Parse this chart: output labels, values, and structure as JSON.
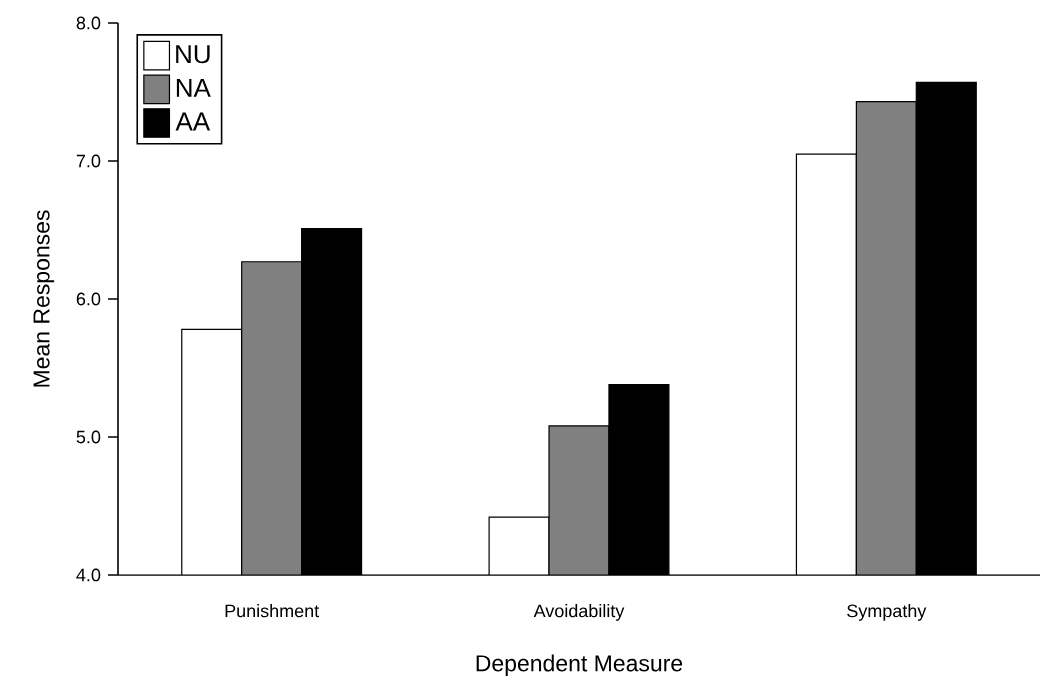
{
  "chart_data": {
    "type": "bar",
    "xlabel": "Dependent Measure",
    "ylabel": "Mean Responses",
    "categories": [
      "Punishment",
      "Avoidability",
      "Sympathy"
    ],
    "series": [
      {
        "name": "NU",
        "color": "#ffffff",
        "values": [
          5.78,
          4.42,
          7.05
        ]
      },
      {
        "name": "NA",
        "color": "#808080",
        "values": [
          6.27,
          5.08,
          7.43
        ]
      },
      {
        "name": "AA",
        "color": "#000000",
        "values": [
          6.51,
          5.38,
          7.57
        ]
      }
    ],
    "ylim": [
      4,
      8
    ],
    "yticks": [
      {
        "value": 4,
        "label": "4.0"
      },
      {
        "value": 5,
        "label": "5.0"
      },
      {
        "value": 6,
        "label": "6.0"
      },
      {
        "value": 7,
        "label": "7.0"
      },
      {
        "value": 8,
        "label": "8.0"
      }
    ],
    "legend": "top left",
    "grid": false
  }
}
